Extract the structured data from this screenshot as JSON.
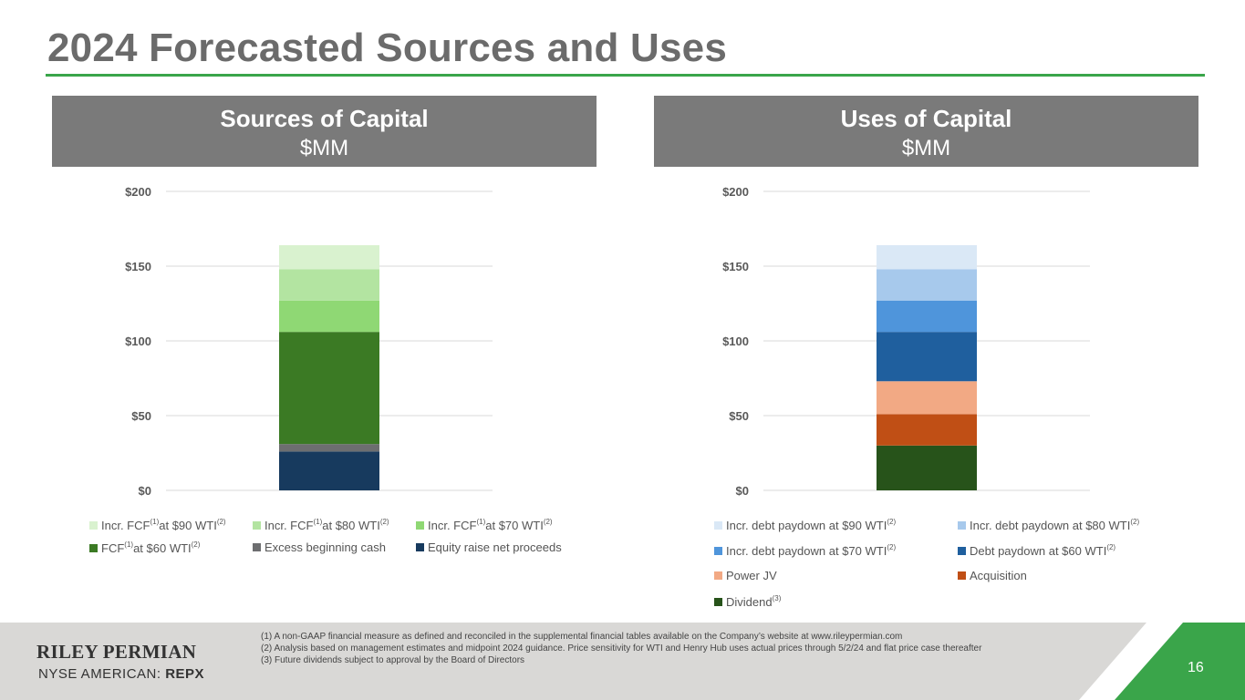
{
  "slide": {
    "title": "2024 Forecasted Sources and Uses",
    "page_number": "16",
    "accent_color": "#3aa54a"
  },
  "sources_panel": {
    "title": "Sources of Capital",
    "unit": "$MM"
  },
  "uses_panel": {
    "title": "Uses of Capital",
    "unit": "$MM"
  },
  "chart_data": [
    {
      "type": "bar",
      "stacked": true,
      "title": "Sources of Capital",
      "ylabel": "$MM",
      "ylim": [
        0,
        200
      ],
      "yticks": [
        "$0",
        "$50",
        "$100",
        "$150",
        "$200"
      ],
      "ytick_values": [
        0,
        50,
        100,
        150,
        200
      ],
      "categories": [
        ""
      ],
      "legend_position": "bottom",
      "series": [
        {
          "name": "Equity raise net proceeds",
          "values": [
            26
          ],
          "color": "#173a5e"
        },
        {
          "name": "Excess beginning cash",
          "values": [
            5
          ],
          "color": "#6d6e70"
        },
        {
          "name": "FCF at $60 WTI",
          "values": [
            75
          ],
          "color": "#3b7a24",
          "sup1": "(1)",
          "sup2": "(2)",
          "prefix": "FCF",
          "suffix": "at $60 WTI"
        },
        {
          "name": "Incr. FCF at $70 WTI",
          "values": [
            21
          ],
          "color": "#8fd874",
          "sup1": "(1)",
          "sup2": "(2)",
          "prefix": "Incr. FCF",
          "suffix": "at $70 WTI"
        },
        {
          "name": "Incr. FCF at $80 WTI",
          "values": [
            21
          ],
          "color": "#b3e4a1",
          "sup1": "(1)",
          "sup2": "(2)",
          "prefix": "Incr. FCF",
          "suffix": "at $80 WTI"
        },
        {
          "name": "Incr. FCF at $90 WTI",
          "values": [
            16
          ],
          "color": "#d9f2cf",
          "sup1": "(1)",
          "sup2": "(2)",
          "prefix": "Incr. FCF",
          "suffix": "at $90 WTI"
        }
      ]
    },
    {
      "type": "bar",
      "stacked": true,
      "title": "Uses of Capital",
      "ylabel": "$MM",
      "ylim": [
        0,
        200
      ],
      "yticks": [
        "$0",
        "$50",
        "$100",
        "$150",
        "$200"
      ],
      "ytick_values": [
        0,
        50,
        100,
        150,
        200
      ],
      "categories": [
        ""
      ],
      "legend_position": "bottom",
      "series": [
        {
          "name": "Dividend",
          "values": [
            30
          ],
          "color": "#27531a",
          "sup2": "(3)"
        },
        {
          "name": "Acquisition",
          "values": [
            21
          ],
          "color": "#c04f15"
        },
        {
          "name": "Power JV",
          "values": [
            22
          ],
          "color": "#f2a984"
        },
        {
          "name": "Debt paydown at $60 WTI",
          "values": [
            33
          ],
          "color": "#1f5f9e",
          "sup2": "(2)"
        },
        {
          "name": "Incr. debt paydown at $70 WTI",
          "values": [
            21
          ],
          "color": "#4f95db",
          "sup2": "(2)"
        },
        {
          "name": "Incr. debt paydown at $80 WTI",
          "values": [
            21
          ],
          "color": "#a7c9ec",
          "sup2": "(2)"
        },
        {
          "name": "Incr. debt paydown at $90 WTI",
          "values": [
            16
          ],
          "color": "#dae8f6",
          "sup2": "(2)"
        }
      ]
    }
  ],
  "footnotes": [
    "(1)  A non-GAAP financial measure as defined and reconciled in the supplemental financial tables available on the Company’s website at www.rileypermian.com",
    "(2)  Analysis based on management estimates and midpoint 2024 guidance. Price sensitivity for WTI and Henry Hub uses actual prices through 5/2/24 and flat price case thereafter",
    "(3)  Future dividends subject to approval by the Board of Directors"
  ],
  "footer": {
    "logo_text": "RILEY PERMIAN",
    "exchange_label": "NYSE AMERICAN:",
    "ticker": "REPX"
  }
}
